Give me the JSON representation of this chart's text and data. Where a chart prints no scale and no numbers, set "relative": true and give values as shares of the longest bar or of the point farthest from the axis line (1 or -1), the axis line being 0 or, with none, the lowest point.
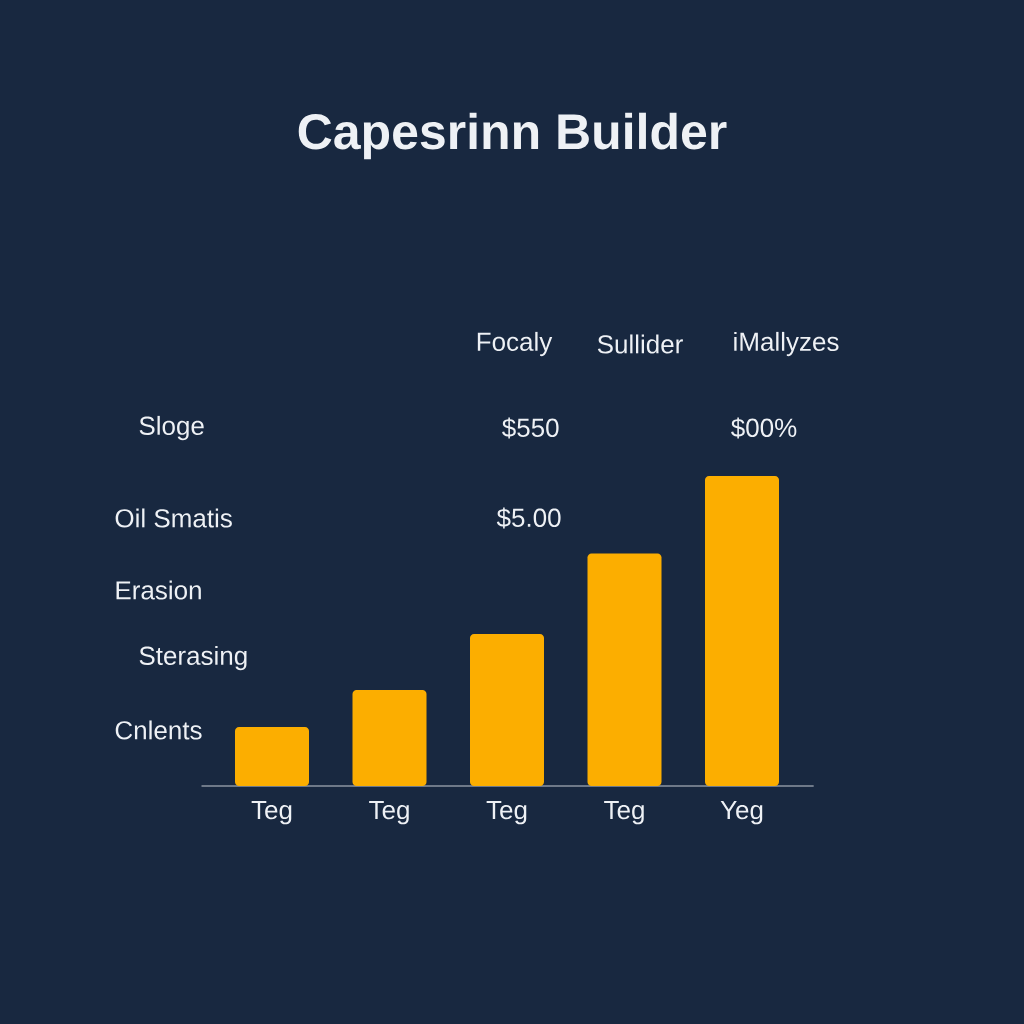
{
  "chart_data": {
    "type": "bar",
    "title": "Capesrinn Builder",
    "categories": [
      "Teg",
      "Teg",
      "Teg",
      "Teg",
      "Yeg"
    ],
    "values": [
      0.19,
      0.31,
      0.49,
      0.75,
      1
    ],
    "relative": true,
    "color": "#fcae00",
    "annotations": [
      "Focaly",
      "Sullider",
      "iMallyzes",
      "Sloge",
      "$550",
      "$00%",
      "Oil Smatis",
      "$5.00",
      "Erasion",
      "Sterasing",
      "Cnlents"
    ]
  }
}
